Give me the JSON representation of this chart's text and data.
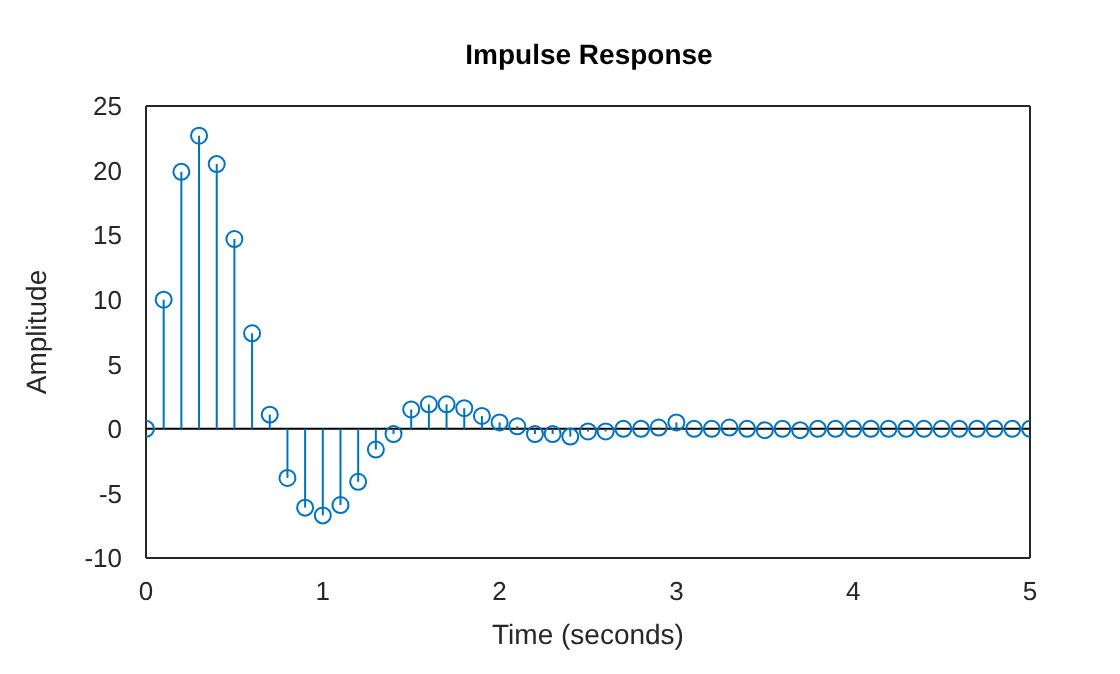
{
  "chart_data": {
    "type": "lollipop",
    "title": "Impulse Response",
    "xlabel": "Time (seconds)",
    "ylabel": "Amplitude",
    "x": [
      0,
      0.1,
      0.2,
      0.3,
      0.4,
      0.5,
      0.6,
      0.7,
      0.8,
      0.9,
      1,
      1.1,
      1.2,
      1.3,
      1.4,
      1.5,
      1.6,
      1.7,
      1.8,
      1.9,
      2,
      2.1,
      2.2,
      2.3,
      2.4,
      2.5,
      2.6,
      2.7,
      2.8,
      2.9,
      3,
      3.1,
      3.2,
      3.3,
      3.4,
      3.5,
      3.6,
      3.7,
      3.8,
      3.9,
      4,
      4.1,
      4.2,
      4.3,
      4.4,
      4.5,
      4.6,
      4.7,
      4.8,
      4.9,
      5
    ],
    "series": [
      {
        "color": "#0072bd",
        "values": [
          0,
          10,
          19.9,
          22.7,
          20.5,
          14.7,
          7.4,
          1.1,
          -3.8,
          -6.1,
          -6.7,
          -5.9,
          -4.1,
          -1.6,
          -0.4,
          1.5,
          1.9,
          1.9,
          1.6,
          1,
          0.5,
          0.2,
          -0.4,
          -0.4,
          -0.6,
          -0.2,
          -0.2,
          0,
          0,
          0.1,
          0.5,
          0,
          0,
          0.1,
          0,
          -0.1,
          0,
          -0.1,
          0,
          0,
          0,
          0,
          0,
          0,
          0,
          0,
          0,
          0,
          0,
          0,
          0
        ]
      }
    ],
    "xlim": [
      0,
      5
    ],
    "xticks": [
      0,
      1,
      2,
      3,
      4,
      5
    ],
    "ylim": [
      -10,
      25
    ],
    "yticks": [
      -10,
      -5,
      0,
      5,
      10,
      15,
      20,
      25
    ],
    "ref_lines": [
      {
        "axis": "y",
        "value": 0,
        "color": "#000000"
      }
    ],
    "marker": "circle"
  }
}
